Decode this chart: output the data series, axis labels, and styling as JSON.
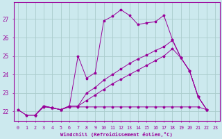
{
  "xlabel": "Windchill (Refroidissement éolien,°C)",
  "background_color": "#cce9ee",
  "grid_color": "#aacccc",
  "line_color": "#990099",
  "xlim": [
    -0.5,
    23.5
  ],
  "ylim": [
    21.5,
    27.9
  ],
  "yticks": [
    22,
    23,
    24,
    25,
    26,
    27
  ],
  "xticks": [
    0,
    1,
    2,
    3,
    4,
    5,
    6,
    7,
    8,
    9,
    10,
    11,
    12,
    13,
    14,
    15,
    16,
    17,
    18,
    19,
    20,
    21,
    22,
    23
  ],
  "curve_max_x": [
    0,
    1,
    2,
    3,
    4,
    5,
    6,
    7,
    8,
    9,
    10,
    11,
    12,
    13,
    14,
    15,
    16,
    17,
    18,
    19,
    20,
    21,
    22
  ],
  "curve_max_y": [
    22.1,
    21.8,
    21.8,
    22.3,
    22.2,
    22.1,
    22.3,
    25.0,
    23.8,
    24.1,
    26.9,
    27.15,
    27.5,
    27.2,
    26.7,
    26.8,
    26.85,
    27.2,
    25.9,
    24.9,
    24.2,
    22.8,
    22.1
  ],
  "curve_min_x": [
    0,
    1,
    2,
    3,
    4,
    5,
    6,
    7,
    8,
    9,
    10,
    11,
    12,
    13,
    14,
    15,
    16,
    17,
    18,
    19,
    20,
    21,
    22
  ],
  "curve_min_y": [
    22.1,
    21.8,
    21.8,
    22.25,
    22.2,
    22.1,
    22.25,
    22.25,
    22.25,
    22.25,
    22.25,
    22.25,
    22.25,
    22.25,
    22.25,
    22.25,
    22.25,
    22.25,
    22.25,
    22.25,
    22.25,
    22.25,
    22.1
  ],
  "curve_avg_x": [
    2,
    3,
    4,
    5,
    6,
    7,
    8,
    9,
    10,
    11,
    12,
    13,
    14,
    15,
    16,
    17,
    18,
    19,
    20,
    21,
    22
  ],
  "curve_avg_y": [
    21.8,
    22.3,
    22.2,
    22.1,
    22.3,
    22.3,
    23.0,
    23.3,
    23.7,
    24.0,
    24.3,
    24.6,
    24.85,
    25.05,
    25.3,
    25.5,
    25.85,
    24.9,
    24.2,
    22.8,
    22.1
  ],
  "curve_trend_x": [
    2,
    3,
    4,
    5,
    6,
    7,
    8,
    9,
    10,
    11,
    12,
    13,
    14,
    15,
    16,
    17,
    18,
    19,
    20,
    21,
    22
  ],
  "curve_trend_y": [
    21.8,
    22.3,
    22.2,
    22.1,
    22.3,
    22.3,
    22.6,
    22.9,
    23.2,
    23.5,
    23.75,
    24.0,
    24.25,
    24.5,
    24.75,
    25.0,
    25.4,
    24.9,
    24.2,
    22.8,
    22.1
  ]
}
